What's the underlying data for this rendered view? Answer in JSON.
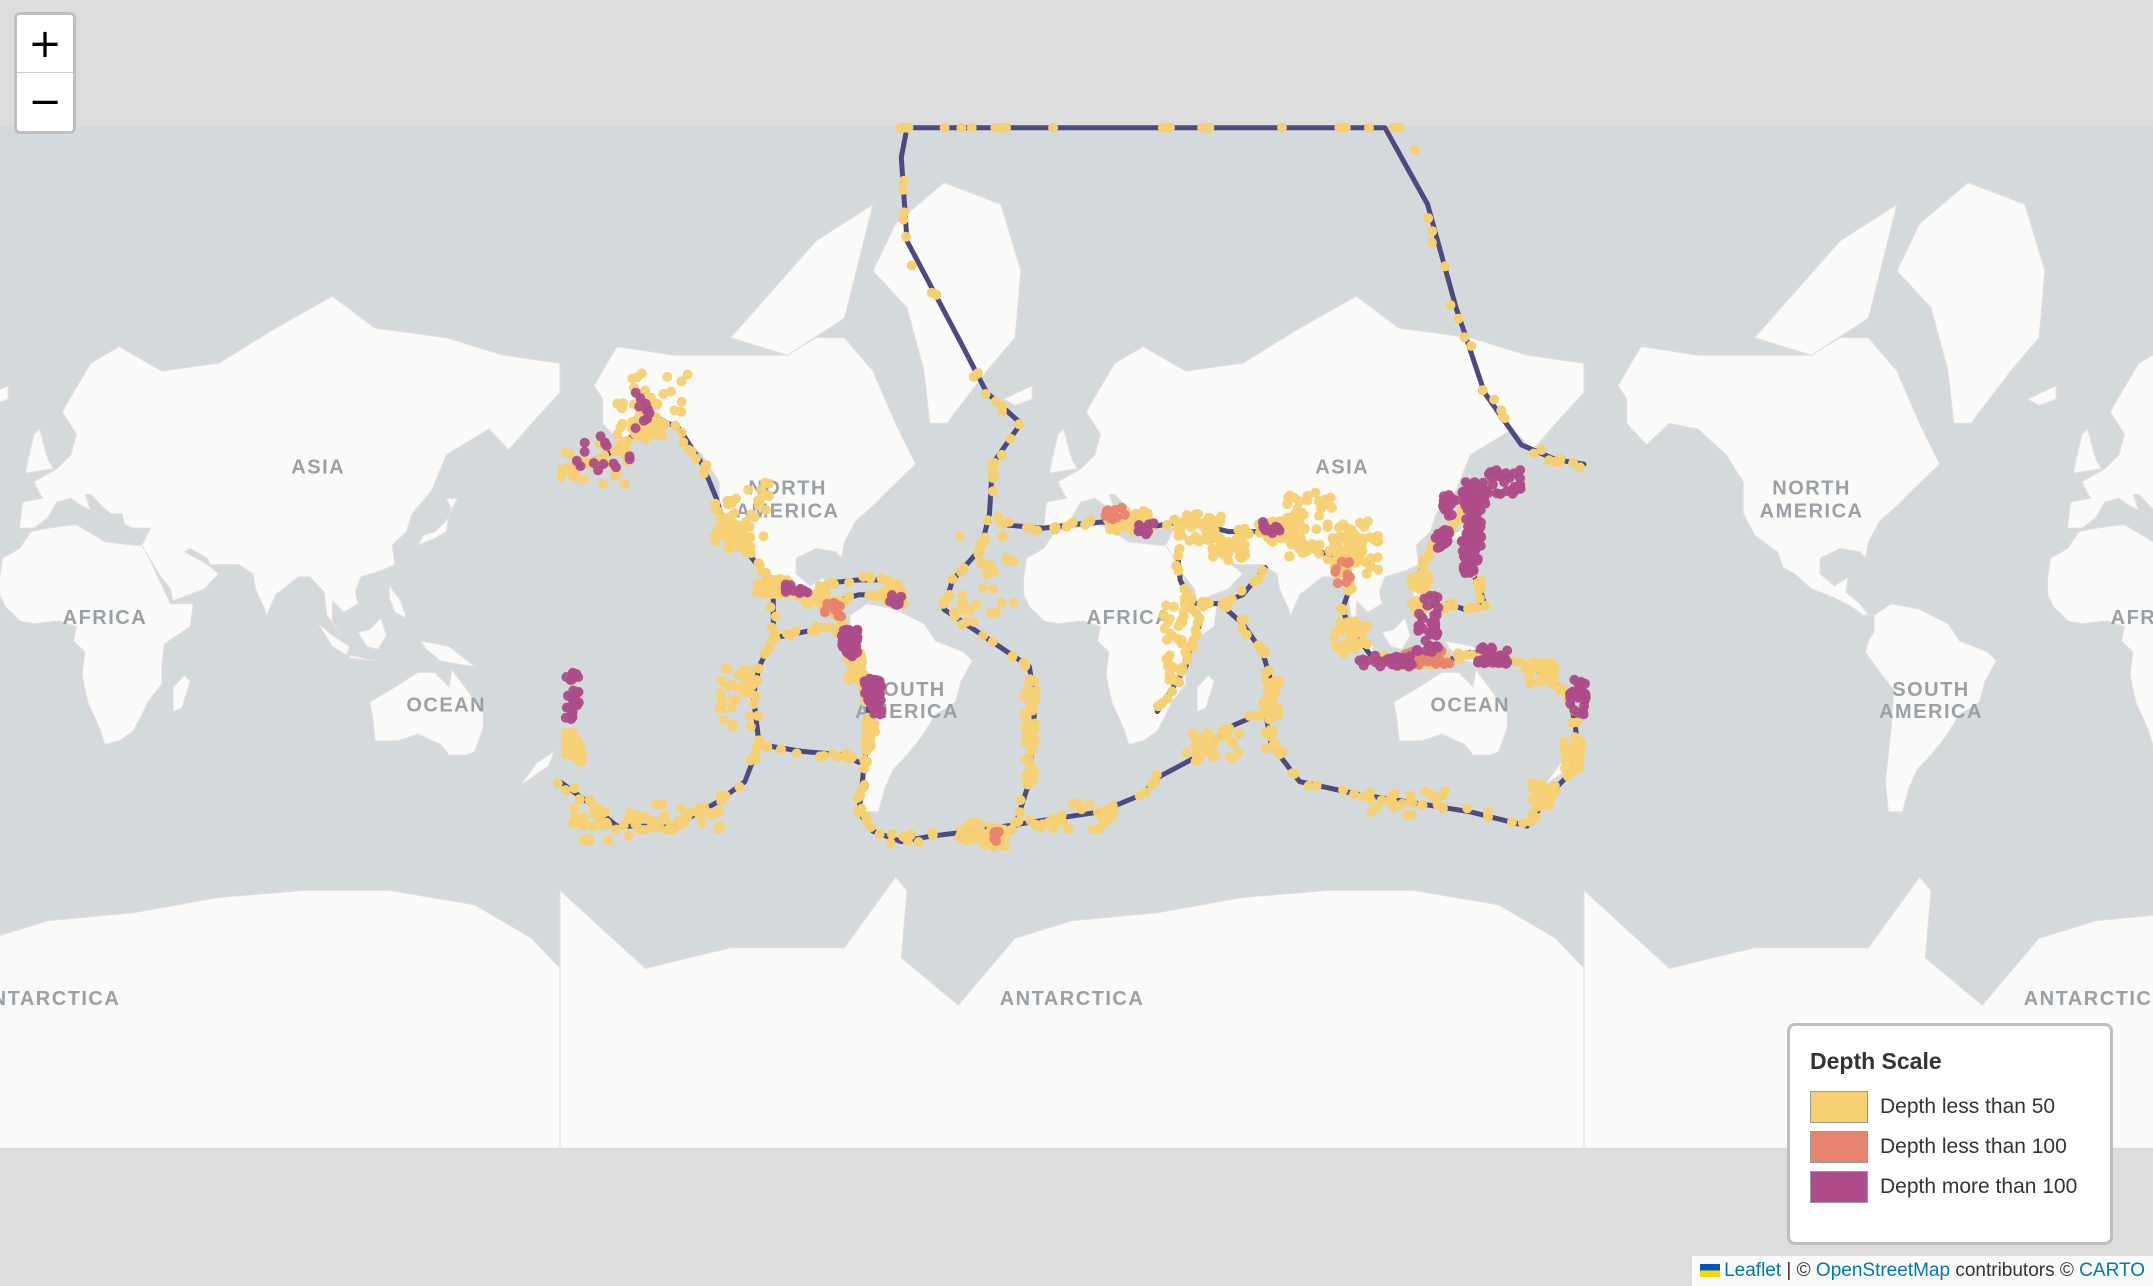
{
  "map": {
    "continent_labels": [
      {
        "name": "ASIA",
        "lon": 95,
        "lat": 50
      },
      {
        "name": "AFRICA",
        "lon": 20,
        "lat": 5
      },
      {
        "name": "OCEAN",
        "lon": 140,
        "lat": -25
      },
      {
        "name": "NORTH",
        "lon": -100,
        "lat": 45
      },
      {
        "name": "AMERICA",
        "lon": -100,
        "lat": 39
      },
      {
        "name": "SOUTH",
        "lon": -58,
        "lat": -20
      },
      {
        "name": "AMERICA",
        "lon": -58,
        "lat": -27
      },
      {
        "name": "ANTARCTICA",
        "lon": 0,
        "lat": -78
      }
    ],
    "colors": {
      "ocean": "#d4dadc",
      "land": "#fafaf8",
      "plate_boundary": "#4e4a80",
      "depth_shallow": "#f5d073",
      "depth_medium": "#e8846e",
      "depth_deep": "#ad4c88"
    },
    "plate_boundaries": [
      [
        [
          -180,
          51
        ],
        [
          -168,
          53
        ],
        [
          -160,
          55
        ],
        [
          -152,
          59
        ],
        [
          -146,
          61
        ],
        [
          -138,
          59
        ],
        [
          -130,
          52
        ],
        [
          -125,
          44
        ],
        [
          -122,
          36
        ],
        [
          -115,
          30
        ],
        [
          -110,
          24
        ],
        [
          -105,
          19
        ],
        [
          -98,
          16
        ],
        [
          -92,
          14
        ],
        [
          -86,
          12
        ],
        [
          -83,
          8
        ],
        [
          -80,
          2
        ],
        [
          -78,
          -5
        ],
        [
          -76,
          -13
        ],
        [
          -72,
          -20
        ],
        [
          -71,
          -30
        ],
        [
          -73,
          -40
        ],
        [
          -74,
          -47
        ],
        [
          -75,
          -52
        ],
        [
          -70,
          -56
        ],
        [
          -60,
          -58
        ],
        [
          -50,
          -57
        ],
        [
          -35,
          -56
        ],
        [
          -28,
          -58
        ],
        [
          -20,
          -55
        ]
      ],
      [
        [
          -35,
          -56
        ],
        [
          -12,
          -54
        ],
        [
          10,
          -52
        ],
        [
          25,
          -48
        ]
      ],
      [
        [
          -58,
          88
        ],
        [
          -30,
          88
        ],
        [
          10,
          88
        ],
        [
          50,
          88
        ],
        [
          110,
          88
        ],
        [
          125,
          82
        ],
        [
          135,
          75
        ],
        [
          145,
          65
        ],
        [
          158,
          56
        ],
        [
          170,
          53
        ],
        [
          180,
          52
        ]
      ],
      [
        [
          -58,
          88
        ],
        [
          -60,
          84
        ],
        [
          -58,
          80
        ],
        [
          -40,
          72
        ],
        [
          -30,
          65
        ],
        [
          -18,
          60
        ],
        [
          -28,
          52
        ],
        [
          -29,
          40
        ],
        [
          -32,
          30
        ],
        [
          -42,
          20
        ],
        [
          -45,
          10
        ],
        [
          -30,
          0
        ],
        [
          -15,
          -10
        ],
        [
          -13,
          -22
        ],
        [
          -14,
          -35
        ],
        [
          -15,
          -45
        ],
        [
          -20,
          -55
        ]
      ],
      [
        [
          -25,
          37
        ],
        [
          -10,
          36
        ],
        [
          0,
          37
        ],
        [
          15,
          38
        ],
        [
          25,
          36
        ],
        [
          40,
          38
        ],
        [
          55,
          35
        ],
        [
          70,
          35
        ],
        [
          85,
          30
        ],
        [
          95,
          26
        ],
        [
          98,
          18
        ],
        [
          95,
          10
        ],
        [
          98,
          3
        ],
        [
          105,
          -6
        ],
        [
          115,
          -9
        ],
        [
          125,
          -9
        ],
        [
          135,
          -7
        ],
        [
          140,
          -5
        ],
        [
          150,
          -6
        ],
        [
          155,
          -8
        ],
        [
          165,
          -12
        ],
        [
          170,
          -16
        ],
        [
          175,
          -20
        ],
        [
          177,
          -30
        ],
        [
          178,
          -38
        ],
        [
          175,
          -43
        ],
        [
          168,
          -48
        ],
        [
          160,
          -55
        ]
      ],
      [
        [
          140,
          45
        ],
        [
          142,
          40
        ],
        [
          141,
          35
        ],
        [
          139,
          30
        ],
        [
          140,
          24
        ],
        [
          143,
          18
        ],
        [
          145,
          12
        ],
        [
          138,
          10
        ],
        [
          132,
          12
        ],
        [
          128,
          8
        ],
        [
          125,
          15
        ],
        [
          122,
          22
        ],
        [
          125,
          28
        ],
        [
          130,
          33
        ],
        [
          135,
          38
        ],
        [
          140,
          45
        ]
      ],
      [
        [
          37,
          30
        ],
        [
          38,
          20
        ],
        [
          42,
          12
        ],
        [
          52,
          12
        ],
        [
          60,
          15
        ],
        [
          68,
          24
        ]
      ],
      [
        [
          42,
          12
        ],
        [
          45,
          5
        ],
        [
          42,
          -2
        ],
        [
          40,
          -10
        ],
        [
          35,
          -18
        ],
        [
          30,
          -25
        ]
      ],
      [
        [
          52,
          12
        ],
        [
          60,
          5
        ],
        [
          67,
          -5
        ],
        [
          70,
          -15
        ],
        [
          68,
          -25
        ],
        [
          70,
          -35
        ],
        [
          80,
          -45
        ],
        [
          100,
          -48
        ],
        [
          120,
          -50
        ],
        [
          140,
          -52
        ],
        [
          160,
          -55
        ]
      ],
      [
        [
          68,
          -25
        ],
        [
          55,
          -30
        ],
        [
          45,
          -38
        ],
        [
          30,
          -44
        ],
        [
          25,
          -48
        ]
      ],
      [
        [
          -180,
          -45
        ],
        [
          -170,
          -50
        ],
        [
          -160,
          -55
        ],
        [
          -140,
          -55
        ],
        [
          -125,
          -50
        ],
        [
          -115,
          -45
        ],
        [
          -110,
          -35
        ],
        [
          -112,
          -20
        ],
        [
          -110,
          -10
        ],
        [
          -105,
          0
        ],
        [
          -105,
          10
        ],
        [
          -105,
          19
        ]
      ],
      [
        [
          -110,
          -35
        ],
        [
          -95,
          -37
        ],
        [
          -80,
          -38
        ],
        [
          -75,
          -40
        ]
      ],
      [
        [
          -105,
          0
        ],
        [
          -95,
          2
        ],
        [
          -85,
          4
        ],
        [
          -80,
          2
        ]
      ],
      [
        [
          -86,
          12
        ],
        [
          -75,
          15
        ],
        [
          -65,
          15
        ],
        [
          -60,
          12
        ],
        [
          -60,
          16
        ],
        [
          -65,
          20
        ],
        [
          -75,
          20
        ],
        [
          -85,
          19
        ],
        [
          -90,
          16
        ]
      ]
    ],
    "quake_clusters": [
      {
        "lon": -172,
        "lat": 52,
        "dl": 18,
        "dt": 5,
        "n": 30,
        "depth": "shallow"
      },
      {
        "lon": -165,
        "lat": 54,
        "dl": 10,
        "dt": 4,
        "n": 15,
        "depth": "deep"
      },
      {
        "lon": -152,
        "lat": 60,
        "dl": 8,
        "dt": 4,
        "n": 30,
        "depth": "shallow"
      },
      {
        "lon": -150,
        "lat": 62,
        "dl": 4,
        "dt": 3,
        "n": 10,
        "depth": "deep"
      },
      {
        "lon": -145,
        "lat": 63,
        "dl": 10,
        "dt": 5,
        "n": 20,
        "depth": "shallow"
      },
      {
        "lon": -122,
        "lat": 38,
        "dl": 4,
        "dt": 6,
        "n": 30,
        "depth": "shallow"
      },
      {
        "lon": -117,
        "lat": 34,
        "dl": 4,
        "dt": 4,
        "n": 25,
        "depth": "shallow"
      },
      {
        "lon": -112,
        "lat": 40,
        "dl": 6,
        "dt": 8,
        "n": 15,
        "depth": "shallow"
      },
      {
        "lon": -105,
        "lat": 18,
        "dl": 6,
        "dt": 3,
        "n": 30,
        "depth": "shallow"
      },
      {
        "lon": -97,
        "lat": 17,
        "dl": 4,
        "dt": 2,
        "n": 12,
        "depth": "deep"
      },
      {
        "lon": -90,
        "lat": 14,
        "dl": 4,
        "dt": 2,
        "n": 25,
        "depth": "shallow"
      },
      {
        "lon": -84,
        "lat": 10,
        "dl": 3,
        "dt": 3,
        "n": 15,
        "depth": "medium"
      },
      {
        "lon": -78,
        "lat": -2,
        "dl": 3,
        "dt": 5,
        "n": 40,
        "depth": "deep"
      },
      {
        "lon": -76,
        "lat": -10,
        "dl": 3,
        "dt": 5,
        "n": 30,
        "depth": "shallow"
      },
      {
        "lon": -70,
        "lat": -20,
        "dl": 3,
        "dt": 6,
        "n": 50,
        "depth": "deep"
      },
      {
        "lon": -71,
        "lat": -32,
        "dl": 2,
        "dt": 5,
        "n": 30,
        "depth": "shallow"
      },
      {
        "lon": -64,
        "lat": 16,
        "dl": 4,
        "dt": 3,
        "n": 20,
        "depth": "shallow"
      },
      {
        "lon": -62,
        "lat": 14,
        "dl": 2,
        "dt": 3,
        "n": 10,
        "depth": "deep"
      },
      {
        "lon": -30,
        "lat": 20,
        "dl": 10,
        "dt": 20,
        "n": 30,
        "depth": "shallow"
      },
      {
        "lon": -15,
        "lat": -30,
        "dl": 2,
        "dt": 15,
        "n": 30,
        "depth": "shallow"
      },
      {
        "lon": -27,
        "lat": -57,
        "dl": 5,
        "dt": 2,
        "n": 20,
        "depth": "shallow"
      },
      {
        "lon": -27,
        "lat": -57,
        "dl": 2,
        "dt": 1,
        "n": 6,
        "depth": "medium"
      },
      {
        "lon": -118,
        "lat": -20,
        "dl": 6,
        "dt": 10,
        "n": 30,
        "depth": "shallow"
      },
      {
        "lon": -135,
        "lat": -53,
        "dl": 12,
        "dt": 3,
        "n": 30,
        "depth": "shallow"
      },
      {
        "lon": -160,
        "lat": -55,
        "dl": 12,
        "dt": 3,
        "n": 20,
        "depth": "shallow"
      },
      {
        "lon": -175,
        "lat": -20,
        "dl": 3,
        "dt": 8,
        "n": 30,
        "depth": "deep"
      },
      {
        "lon": -175,
        "lat": -35,
        "dl": 3,
        "dt": 5,
        "n": 20,
        "depth": "shallow"
      },
      {
        "lon": 20,
        "lat": 38,
        "dl": 8,
        "dt": 3,
        "n": 40,
        "depth": "shallow"
      },
      {
        "lon": 15,
        "lat": 40,
        "dl": 4,
        "dt": 2,
        "n": 10,
        "depth": "medium"
      },
      {
        "lon": 28,
        "lat": 36,
        "dl": 5,
        "dt": 2,
        "n": 10,
        "depth": "deep"
      },
      {
        "lon": 45,
        "lat": 36,
        "dl": 8,
        "dt": 4,
        "n": 40,
        "depth": "shallow"
      },
      {
        "lon": 55,
        "lat": 30,
        "dl": 6,
        "dt": 4,
        "n": 30,
        "depth": "shallow"
      },
      {
        "lon": 70,
        "lat": 35,
        "dl": 5,
        "dt": 3,
        "n": 30,
        "depth": "shallow"
      },
      {
        "lon": 70,
        "lat": 36,
        "dl": 3,
        "dt": 2,
        "n": 10,
        "depth": "deep"
      },
      {
        "lon": 90,
        "lat": 32,
        "dl": 14,
        "dt": 6,
        "n": 60,
        "depth": "shallow"
      },
      {
        "lon": 100,
        "lat": 28,
        "dl": 8,
        "dt": 6,
        "n": 40,
        "depth": "shallow"
      },
      {
        "lon": 95,
        "lat": 22,
        "dl": 3,
        "dt": 4,
        "n": 10,
        "depth": "medium"
      },
      {
        "lon": 85,
        "lat": 42,
        "dl": 10,
        "dt": 4,
        "n": 30,
        "depth": "shallow"
      },
      {
        "lon": 36,
        "lat": 0,
        "dl": 4,
        "dt": 15,
        "n": 30,
        "depth": "shallow"
      },
      {
        "lon": 98,
        "lat": 0,
        "dl": 6,
        "dt": 6,
        "n": 30,
        "depth": "shallow"
      },
      {
        "lon": 110,
        "lat": -8,
        "dl": 10,
        "dt": 2,
        "n": 30,
        "depth": "deep"
      },
      {
        "lon": 125,
        "lat": -7,
        "dl": 8,
        "dt": 3,
        "n": 30,
        "depth": "medium"
      },
      {
        "lon": 125,
        "lat": 5,
        "dl": 4,
        "dt": 10,
        "n": 40,
        "depth": "deep"
      },
      {
        "lon": 122,
        "lat": 15,
        "dl": 4,
        "dt": 8,
        "n": 25,
        "depth": "shallow"
      },
      {
        "lon": 141,
        "lat": 38,
        "dl": 3,
        "dt": 8,
        "n": 50,
        "depth": "deep"
      },
      {
        "lon": 142,
        "lat": 45,
        "dl": 5,
        "dt": 3,
        "n": 30,
        "depth": "deep"
      },
      {
        "lon": 152,
        "lat": 48,
        "dl": 6,
        "dt": 3,
        "n": 25,
        "depth": "deep"
      },
      {
        "lon": 140,
        "lat": 28,
        "dl": 3,
        "dt": 6,
        "n": 30,
        "depth": "deep"
      },
      {
        "lon": 130,
        "lat": 33,
        "dl": 3,
        "dt": 3,
        "n": 20,
        "depth": "deep"
      },
      {
        "lon": 132,
        "lat": 42,
        "dl": 3,
        "dt": 3,
        "n": 15,
        "depth": "deep"
      },
      {
        "lon": 148,
        "lat": -6,
        "dl": 6,
        "dt": 3,
        "n": 30,
        "depth": "deep"
      },
      {
        "lon": 165,
        "lat": -12,
        "dl": 5,
        "dt": 4,
        "n": 30,
        "depth": "shallow"
      },
      {
        "lon": 178,
        "lat": -20,
        "dl": 3,
        "dt": 6,
        "n": 30,
        "depth": "deep"
      },
      {
        "lon": 176,
        "lat": -38,
        "dl": 3,
        "dt": 5,
        "n": 25,
        "depth": "shallow"
      },
      {
        "lon": 165,
        "lat": -48,
        "dl": 4,
        "dt": 3,
        "n": 20,
        "depth": "shallow"
      },
      {
        "lon": 120,
        "lat": -50,
        "dl": 15,
        "dt": 3,
        "n": 20,
        "depth": "shallow"
      },
      {
        "lon": 70,
        "lat": -25,
        "dl": 3,
        "dt": 12,
        "n": 30,
        "depth": "shallow"
      },
      {
        "lon": 50,
        "lat": -35,
        "dl": 10,
        "dt": 4,
        "n": 25,
        "depth": "shallow"
      },
      {
        "lon": 0,
        "lat": -53,
        "dl": 15,
        "dt": 3,
        "n": 25,
        "depth": "shallow"
      },
      {
        "lon": -35,
        "lat": -56,
        "dl": 4,
        "dt": 2,
        "n": 15,
        "depth": "shallow"
      },
      {
        "lon": -170,
        "lat": -52,
        "dl": 6,
        "dt": 3,
        "n": 15,
        "depth": "shallow"
      }
    ]
  },
  "zoom": {
    "in_label": "+",
    "out_label": "−"
  },
  "legend": {
    "title": "Depth Scale",
    "items": [
      {
        "label": "Depth less than 50",
        "color": "#f5d073"
      },
      {
        "label": "Depth less than 100",
        "color": "#e8846e"
      },
      {
        "label": "Depth more than 100",
        "color": "#ad4c88"
      }
    ]
  },
  "attribution": {
    "leaflet": "Leaflet",
    "sep": " | © ",
    "osm": "OpenStreetMap",
    "mid": " contributors © ",
    "carto": "CARTO"
  }
}
